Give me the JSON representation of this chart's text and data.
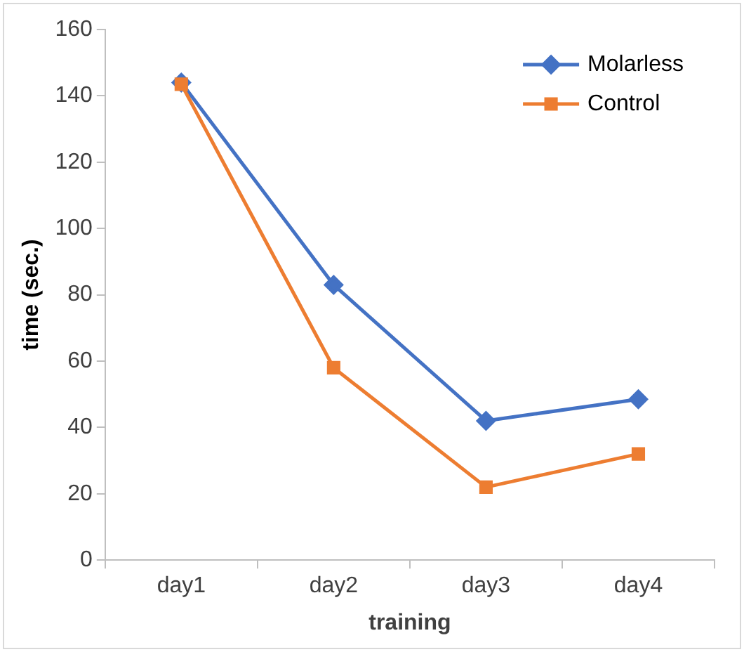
{
  "chart_data": {
    "type": "line",
    "xlabel": "training",
    "ylabel": "time (sec.)",
    "categories": [
      "day1",
      "day2",
      "day3",
      "day4"
    ],
    "series": [
      {
        "name": "Molarless",
        "color": "#4472c4",
        "marker": "diamond",
        "values": [
          144,
          83,
          42,
          48.5
        ]
      },
      {
        "name": "Control",
        "color": "#ed7d31",
        "marker": "square",
        "values": [
          143.5,
          58,
          22,
          32
        ]
      }
    ],
    "ylim": [
      0,
      160
    ],
    "yticks": [
      0,
      20,
      40,
      60,
      80,
      100,
      120,
      140,
      160
    ],
    "grid": false,
    "legend": "top right",
    "line_style": "solid"
  }
}
